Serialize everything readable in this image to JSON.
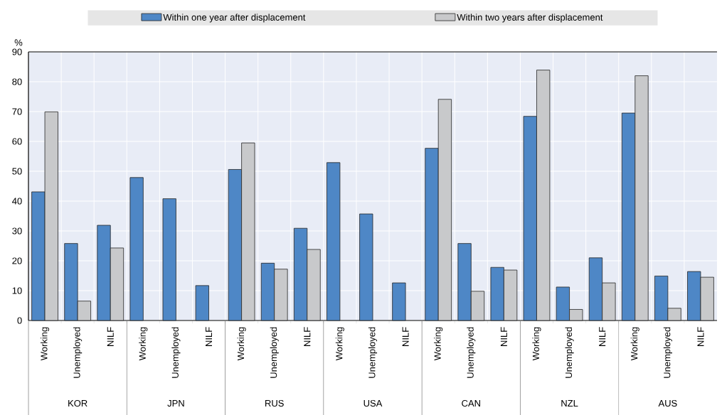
{
  "chart_data": {
    "type": "bar",
    "categories": [
      "Working",
      "Unemployed",
      "NILF",
      "Working",
      "Unemployed",
      "NILF",
      "Working",
      "Unemployed",
      "NILF",
      "Working",
      "Unemployed",
      "NILF",
      "Working",
      "Unemployed",
      "NILF",
      "Working",
      "Unemployed",
      "NILF",
      "Working",
      "Unemployed",
      "NILF"
    ],
    "series": [
      {
        "name": "Within one year after displacement",
        "color": "#4e87c6",
        "values": [
          43.1,
          25.8,
          31.9,
          47.9,
          40.8,
          11.7,
          50.6,
          19.2,
          30.9,
          52.9,
          35.7,
          12.6,
          57.7,
          25.8,
          17.8,
          68.4,
          11.2,
          21.0,
          69.5,
          14.9,
          16.4
        ]
      },
      {
        "name": "Within two years after displacement",
        "color": "#c8c9cb",
        "values": [
          69.9,
          6.5,
          24.3,
          null,
          null,
          null,
          59.5,
          17.2,
          23.8,
          null,
          null,
          null,
          74.1,
          9.8,
          16.9,
          83.9,
          3.7,
          12.6,
          82.0,
          4.1,
          14.5
        ]
      }
    ],
    "ylabel": "%",
    "ylim": [
      0,
      90
    ],
    "yticks": [
      0,
      10,
      20,
      30,
      40,
      50,
      60,
      70,
      80,
      90
    ],
    "annotations": [
      "KOR",
      "JPN",
      "RUS",
      "USA",
      "CAN",
      "NZL",
      "AUS"
    ],
    "grid": true,
    "legend": "top"
  }
}
